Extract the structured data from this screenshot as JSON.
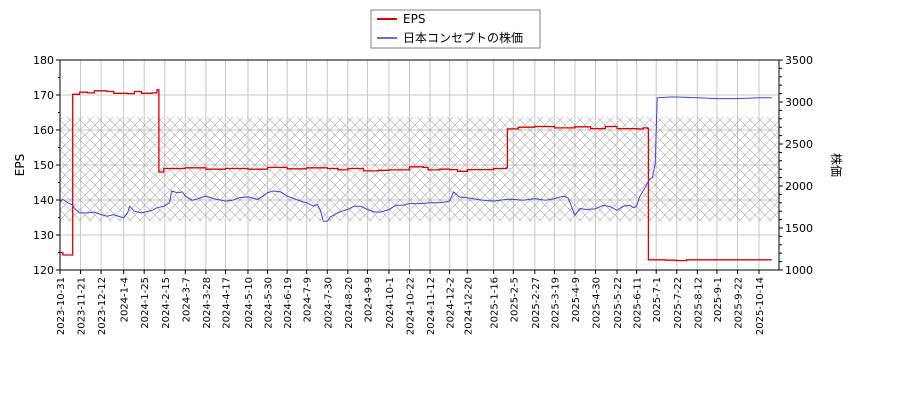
{
  "chart_data": {
    "type": "line",
    "title": "",
    "legend": {
      "position": "top-center",
      "entries": [
        {
          "label": "EPS",
          "color": "#e00000"
        },
        {
          "label": "日本コンセプトの株価",
          "color": "#4040e0"
        }
      ]
    },
    "xlabel": "",
    "ylabel_left": "EPS",
    "ylabel_right": "株価",
    "ylim_left": [
      120,
      180
    ],
    "ylim_right": [
      1000,
      3500
    ],
    "yticks_left": [
      120,
      130,
      140,
      150,
      160,
      170,
      180
    ],
    "yticks_right": [
      1000,
      1500,
      2000,
      2500,
      3000,
      3500
    ],
    "grid": true,
    "hatched_band_right_axis": [
      1580,
      2820
    ],
    "x_tick_labels": [
      "2023-10-31",
      "2023-11-21",
      "2023-12-12",
      "2024-1-4",
      "2024-1-25",
      "2024-2-15",
      "2024-3-7",
      "2024-3-28",
      "2024-4-17",
      "2024-5-10",
      "2024-5-30",
      "2024-6-19",
      "2024-7-9",
      "2024-7-30",
      "2024-8-20",
      "2024-9-9",
      "2024-10-1",
      "2024-10-22",
      "2024-11-12",
      "2024-12-2",
      "2024-12-20",
      "2025-1-16",
      "2025-2-5",
      "2025-2-27",
      "2025-3-19",
      "2025-4-9",
      "2025-4-30",
      "2025-5-22",
      "2025-6-11",
      "2025-7-1",
      "2025-7-22",
      "2025-8-12",
      "2025-9-1",
      "2025-9-22",
      "2025-10-14"
    ],
    "series": [
      {
        "name": "EPS",
        "axis": "left",
        "color": "#e00000",
        "points": [
          [
            "2023-10-31",
            125.0
          ],
          [
            "2023-11-03",
            124.3
          ],
          [
            "2023-11-12",
            124.3
          ],
          [
            "2023-11-13",
            170.2
          ],
          [
            "2023-11-20",
            170.8
          ],
          [
            "2023-11-28",
            170.6
          ],
          [
            "2023-12-05",
            171.2
          ],
          [
            "2023-12-18",
            171.0
          ],
          [
            "2023-12-25",
            170.5
          ],
          [
            "2024-01-08",
            170.4
          ],
          [
            "2024-01-15",
            171.0
          ],
          [
            "2024-01-22",
            170.5
          ],
          [
            "2024-02-02",
            170.6
          ],
          [
            "2024-02-07",
            171.5
          ],
          [
            "2024-02-09",
            148.0
          ],
          [
            "2024-02-14",
            149.0
          ],
          [
            "2024-03-07",
            149.2
          ],
          [
            "2024-03-28",
            148.8
          ],
          [
            "2024-04-17",
            149.0
          ],
          [
            "2024-05-10",
            148.8
          ],
          [
            "2024-05-30",
            149.3
          ],
          [
            "2024-06-19",
            148.9
          ],
          [
            "2024-07-09",
            149.2
          ],
          [
            "2024-07-30",
            149.0
          ],
          [
            "2024-08-10",
            148.6
          ],
          [
            "2024-08-20",
            149.0
          ],
          [
            "2024-09-05",
            148.3
          ],
          [
            "2024-09-20",
            148.5
          ],
          [
            "2024-10-01",
            148.6
          ],
          [
            "2024-10-22",
            149.5
          ],
          [
            "2024-11-05",
            149.3
          ],
          [
            "2024-11-10",
            148.6
          ],
          [
            "2024-11-22",
            148.8
          ],
          [
            "2024-12-02",
            148.7
          ],
          [
            "2024-12-10",
            148.2
          ],
          [
            "2024-12-20",
            148.7
          ],
          [
            "2025-01-16",
            149.0
          ],
          [
            "2025-01-29",
            149.2
          ],
          [
            "2025-01-30",
            160.3
          ],
          [
            "2025-02-10",
            160.8
          ],
          [
            "2025-02-27",
            161.0
          ],
          [
            "2025-03-19",
            160.6
          ],
          [
            "2025-04-09",
            160.9
          ],
          [
            "2025-04-25",
            160.4
          ],
          [
            "2025-05-10",
            161.0
          ],
          [
            "2025-05-22",
            160.4
          ],
          [
            "2025-06-11",
            160.3
          ],
          [
            "2025-06-18",
            160.6
          ],
          [
            "2025-06-22",
            160.5
          ],
          [
            "2025-06-23",
            122.9
          ],
          [
            "2025-07-10",
            122.8
          ],
          [
            "2025-07-22",
            122.7
          ],
          [
            "2025-08-01",
            122.9
          ],
          [
            "2025-10-27",
            122.9
          ]
        ]
      },
      {
        "name": "日本コンセプトの株価",
        "axis": "right",
        "color": "#4040e0",
        "points": [
          [
            "2023-10-31",
            1810
          ],
          [
            "2023-11-03",
            1840
          ],
          [
            "2023-11-08",
            1800
          ],
          [
            "2023-11-12",
            1780
          ],
          [
            "2023-11-16",
            1720
          ],
          [
            "2023-11-20",
            1680
          ],
          [
            "2023-11-28",
            1680
          ],
          [
            "2023-12-05",
            1690
          ],
          [
            "2023-12-12",
            1660
          ],
          [
            "2023-12-18",
            1640
          ],
          [
            "2023-12-25",
            1660
          ],
          [
            "2024-01-04",
            1620
          ],
          [
            "2024-01-08",
            1680
          ],
          [
            "2024-01-10",
            1760
          ],
          [
            "2024-01-15",
            1700
          ],
          [
            "2024-01-22",
            1680
          ],
          [
            "2024-02-02",
            1710
          ],
          [
            "2024-02-07",
            1740
          ],
          [
            "2024-02-14",
            1760
          ],
          [
            "2024-02-20",
            1800
          ],
          [
            "2024-02-22",
            1940
          ],
          [
            "2024-02-28",
            1920
          ],
          [
            "2024-03-04",
            1930
          ],
          [
            "2024-03-07",
            1880
          ],
          [
            "2024-03-14",
            1830
          ],
          [
            "2024-03-20",
            1850
          ],
          [
            "2024-03-28",
            1880
          ],
          [
            "2024-04-05",
            1850
          ],
          [
            "2024-04-17",
            1820
          ],
          [
            "2024-04-24",
            1830
          ],
          [
            "2024-05-01",
            1860
          ],
          [
            "2024-05-10",
            1870
          ],
          [
            "2024-05-20",
            1840
          ],
          [
            "2024-05-30",
            1920
          ],
          [
            "2024-06-05",
            1940
          ],
          [
            "2024-06-12",
            1930
          ],
          [
            "2024-06-19",
            1880
          ],
          [
            "2024-06-26",
            1850
          ],
          [
            "2024-07-03",
            1820
          ],
          [
            "2024-07-09",
            1800
          ],
          [
            "2024-07-16",
            1760
          ],
          [
            "2024-07-20",
            1780
          ],
          [
            "2024-07-23",
            1710
          ],
          [
            "2024-07-26",
            1580
          ],
          [
            "2024-07-30",
            1580
          ],
          [
            "2024-08-02",
            1630
          ],
          [
            "2024-08-08",
            1670
          ],
          [
            "2024-08-14",
            1700
          ],
          [
            "2024-08-20",
            1720
          ],
          [
            "2024-08-26",
            1760
          ],
          [
            "2024-09-02",
            1760
          ],
          [
            "2024-09-09",
            1720
          ],
          [
            "2024-09-16",
            1690
          ],
          [
            "2024-09-23",
            1690
          ],
          [
            "2024-10-01",
            1720
          ],
          [
            "2024-10-08",
            1770
          ],
          [
            "2024-10-15",
            1770
          ],
          [
            "2024-10-22",
            1790
          ],
          [
            "2024-11-01",
            1790
          ],
          [
            "2024-11-12",
            1800
          ],
          [
            "2024-11-20",
            1800
          ],
          [
            "2024-11-27",
            1810
          ],
          [
            "2024-12-02",
            1820
          ],
          [
            "2024-12-06",
            1930
          ],
          [
            "2024-12-12",
            1870
          ],
          [
            "2024-12-20",
            1860
          ],
          [
            "2025-01-05",
            1830
          ],
          [
            "2025-01-16",
            1820
          ],
          [
            "2025-01-29",
            1840
          ],
          [
            "2025-02-05",
            1840
          ],
          [
            "2025-02-15",
            1830
          ],
          [
            "2025-02-27",
            1850
          ],
          [
            "2025-03-10",
            1830
          ],
          [
            "2025-03-19",
            1850
          ],
          [
            "2025-03-28",
            1880
          ],
          [
            "2025-04-02",
            1860
          ],
          [
            "2025-04-06",
            1740
          ],
          [
            "2025-04-09",
            1650
          ],
          [
            "2025-04-14",
            1730
          ],
          [
            "2025-04-22",
            1720
          ],
          [
            "2025-04-30",
            1730
          ],
          [
            "2025-05-08",
            1770
          ],
          [
            "2025-05-16",
            1750
          ],
          [
            "2025-05-22",
            1710
          ],
          [
            "2025-05-28",
            1760
          ],
          [
            "2025-06-04",
            1770
          ],
          [
            "2025-06-08",
            1740
          ],
          [
            "2025-06-11",
            1760
          ],
          [
            "2025-06-14",
            1870
          ],
          [
            "2025-06-20",
            1990
          ],
          [
            "2025-06-24",
            2080
          ],
          [
            "2025-06-27",
            2100
          ],
          [
            "2025-06-30",
            2260
          ],
          [
            "2025-07-02",
            3050
          ],
          [
            "2025-07-15",
            3060
          ],
          [
            "2025-07-22",
            3060
          ],
          [
            "2025-08-12",
            3050
          ],
          [
            "2025-09-01",
            3040
          ],
          [
            "2025-09-22",
            3040
          ],
          [
            "2025-10-14",
            3050
          ],
          [
            "2025-10-27",
            3050
          ]
        ]
      }
    ]
  }
}
